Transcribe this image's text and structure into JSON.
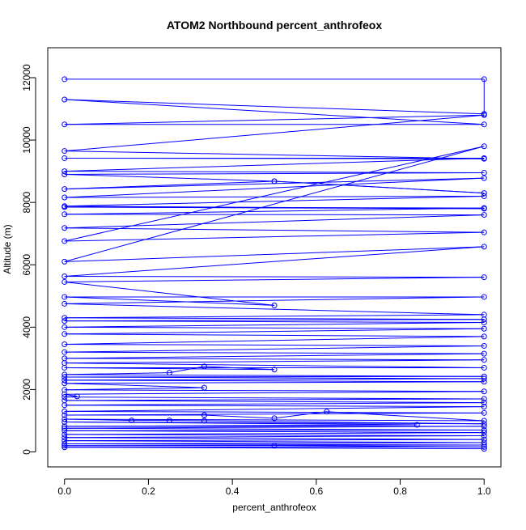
{
  "chart_data": {
    "type": "line",
    "title": "ATOM2 Northbound percent_anthrofeox",
    "xlabel": "percent_anthrofeox",
    "ylabel": "Altitude (m)",
    "xlim": [
      -0.04,
      1.04
    ],
    "ylim": [
      -480,
      12960
    ],
    "x_ticks": [
      0.0,
      0.2,
      0.4,
      0.6,
      0.8,
      1.0
    ],
    "x_tick_labels": [
      "0.0",
      "0.2",
      "0.4",
      "0.6",
      "0.8",
      "1.0"
    ],
    "y_ticks": [
      0,
      2000,
      4000,
      6000,
      8000,
      10000,
      12000
    ],
    "y_tick_labels": [
      "0",
      "2000",
      "4000",
      "6000",
      "8000",
      "10000",
      "12000"
    ],
    "grid": false,
    "legend": "none",
    "colors": {
      "series": "#0000ff",
      "axes": "#000000",
      "background": "#ffffff"
    },
    "marker": "open-circle",
    "series": [
      {
        "points": [
          [
            0,
            11950
          ],
          [
            1,
            11950
          ],
          [
            1,
            10840
          ],
          [
            0,
            11300
          ],
          [
            1,
            10500
          ],
          [
            0,
            10500
          ],
          [
            1,
            10800
          ],
          [
            0,
            9650
          ],
          [
            1,
            9400
          ],
          [
            0,
            9420
          ],
          [
            1,
            9420
          ],
          [
            0,
            9000
          ],
          [
            1,
            8950
          ],
          [
            0,
            8900
          ],
          [
            0.5,
            8680
          ],
          [
            1,
            8300
          ],
          [
            0.5,
            8680
          ],
          [
            0,
            8430
          ],
          [
            1,
            8780
          ],
          [
            0,
            8160
          ],
          [
            1,
            8200
          ],
          [
            0,
            7880
          ],
          [
            1,
            7800
          ],
          [
            0,
            7850
          ],
          [
            1,
            7820
          ],
          [
            0,
            7620
          ],
          [
            1,
            7600
          ],
          [
            0,
            7180
          ],
          [
            1,
            7040
          ],
          [
            0,
            6760
          ],
          [
            1,
            9800
          ],
          [
            0,
            6100
          ],
          [
            1,
            6580
          ],
          [
            0,
            5630
          ],
          [
            1,
            5600
          ],
          [
            0,
            5450
          ],
          [
            0.5,
            4700
          ],
          [
            0,
            4970
          ],
          [
            1,
            4970
          ],
          [
            0,
            4750
          ],
          [
            1,
            4400
          ],
          [
            0,
            4300
          ],
          [
            1,
            4250
          ],
          [
            0,
            4200
          ],
          [
            1,
            4150
          ],
          [
            0,
            4000
          ],
          [
            1,
            3950
          ],
          [
            0,
            3780
          ],
          [
            1,
            3700
          ],
          [
            0,
            3450
          ],
          [
            1,
            3400
          ],
          [
            0,
            3200
          ],
          [
            1,
            3150
          ],
          [
            0,
            3000
          ],
          [
            1,
            2950
          ],
          [
            0,
            2850
          ],
          [
            1,
            2700
          ],
          [
            0,
            2700
          ],
          [
            0.5,
            2640
          ],
          [
            0.333,
            2740
          ],
          [
            0.25,
            2540
          ],
          [
            0,
            2480
          ],
          [
            1,
            2420
          ],
          [
            0,
            2400
          ],
          [
            1,
            2350
          ],
          [
            0,
            2300
          ],
          [
            1,
            2250
          ],
          [
            0,
            2200
          ],
          [
            0.333,
            2060
          ],
          [
            0,
            1990
          ],
          [
            1,
            1940
          ],
          [
            0,
            1850
          ],
          [
            0.03,
            1780
          ],
          [
            0,
            1760
          ],
          [
            1,
            1700
          ],
          [
            0,
            1650
          ],
          [
            1,
            1580
          ],
          [
            0,
            1500
          ],
          [
            1,
            1450
          ],
          [
            0,
            1300
          ],
          [
            1,
            1250
          ],
          [
            0,
            1180
          ],
          [
            0.333,
            1180
          ],
          [
            0.5,
            1080
          ],
          [
            0.625,
            1290
          ],
          [
            1,
            1000
          ],
          [
            0,
            1050
          ],
          [
            0.16,
            1010
          ],
          [
            0.25,
            1010
          ],
          [
            0.333,
            1000
          ],
          [
            1,
            900
          ],
          [
            0,
            960
          ],
          [
            0.84,
            870
          ],
          [
            0,
            820
          ],
          [
            1,
            820
          ],
          [
            0,
            760
          ],
          [
            1,
            700
          ],
          [
            0,
            680
          ],
          [
            1,
            620
          ],
          [
            0,
            560
          ],
          [
            1,
            520
          ],
          [
            0,
            460
          ],
          [
            1,
            400
          ],
          [
            0,
            360
          ],
          [
            1,
            300
          ],
          [
            0,
            260
          ],
          [
            1,
            220
          ],
          [
            0,
            200
          ],
          [
            0.5,
            200
          ],
          [
            1,
            160
          ],
          [
            0,
            150
          ],
          [
            1,
            100
          ]
        ]
      }
    ]
  }
}
